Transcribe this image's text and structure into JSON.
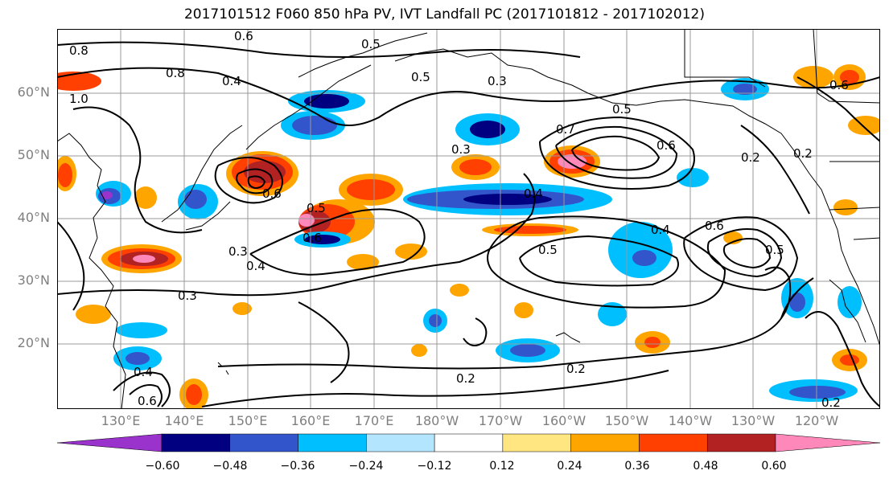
{
  "title": "2017101512 F060 850 hPa PV, IVT Landfall PC (2017101812 - 2017102012)",
  "lat_labels": [
    "60°N",
    "50°N",
    "40°N",
    "30°N",
    "20°N"
  ],
  "lon_labels": [
    "130°E",
    "140°E",
    "150°E",
    "160°E",
    "170°E",
    "180°W",
    "170°W",
    "160°W",
    "150°W",
    "140°W",
    "130°W",
    "120°W"
  ],
  "colorbar": {
    "ticks": [
      "−0.60",
      "−0.48",
      "−0.36",
      "−0.24",
      "−0.12",
      "0.12",
      "0.24",
      "0.36",
      "0.48",
      "0.60"
    ],
    "colors": [
      "#9933cc",
      "#000080",
      "#3355cc",
      "#00bfff",
      "#b3e5ff",
      "#ffffff",
      "#ffe680",
      "#ffa500",
      "#ff4000",
      "#b22222",
      "#ff88bb"
    ]
  },
  "contour_labels": [
    "0.8",
    "0.6",
    "0.5",
    "0.4",
    "0.5",
    "0.3",
    "0.7",
    "0.5",
    "0.6",
    "0.3",
    "0.2",
    "0.6",
    "0.6",
    "0.5",
    "0.4",
    "0.4",
    "0.3",
    "0.3",
    "0.5",
    "0.6",
    "0.5",
    "0.4",
    "0.2",
    "0.2",
    "0.2",
    "0.6",
    "0.2",
    "1.0",
    "0.4",
    "0.6",
    "0.8"
  ],
  "colors": {
    "axis_label": "#7f7f7f",
    "contour": "#000000",
    "coast": "#000000",
    "grid": "#999999"
  }
}
